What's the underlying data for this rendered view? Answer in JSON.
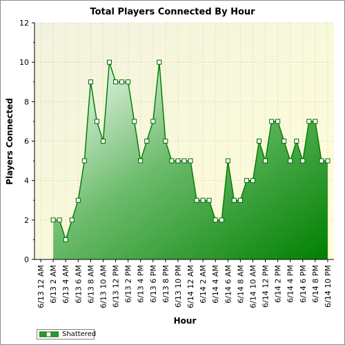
{
  "chart_data": {
    "type": "area",
    "title": "Total Players Connected By Hour",
    "xlabel": "Hour",
    "ylabel": "Players Connected",
    "ylim": [
      0,
      12
    ],
    "y_ticks": [
      "0",
      "2",
      "4",
      "6",
      "8",
      "10",
      "12"
    ],
    "x_tick_labels": [
      "6/13 12 AM",
      "6/13 2 AM",
      "6/13 4 AM",
      "6/13 6 AM",
      "6/13 8 AM",
      "6/13 10 AM",
      "6/13 12 PM",
      "6/13 2 PM",
      "6/13 4 PM",
      "6/13 6 PM",
      "6/13 8 PM",
      "6/13 10 PM",
      "6/14 12 AM",
      "6/14 2 AM",
      "6/14 4 AM",
      "6/14 6 AM",
      "6/14 8 AM",
      "6/14 10 AM",
      "6/14 12 PM",
      "6/14 2 PM",
      "6/14 4 PM",
      "6/14 6 PM",
      "6/14 8 PM",
      "6/14 10 PM"
    ],
    "x_start_hour": 2,
    "grid": true,
    "legend_position": "bottom-left",
    "series": [
      {
        "name": "Shattered",
        "color": "#008000",
        "values": [
          2,
          2,
          1,
          2,
          3,
          5,
          9,
          7,
          6,
          10,
          9,
          9,
          9,
          7,
          5,
          6,
          7,
          10,
          6,
          5,
          5,
          5,
          5,
          3,
          3,
          3,
          2,
          2,
          5,
          3,
          3,
          4,
          4,
          6,
          5,
          7,
          7,
          6,
          5,
          6,
          5,
          7,
          7,
          5,
          5
        ]
      }
    ]
  }
}
